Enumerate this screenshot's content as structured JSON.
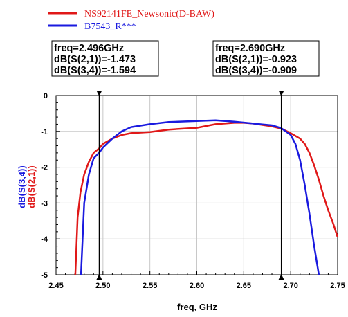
{
  "chart_data": {
    "type": "line",
    "xlabel": "freq, GHz",
    "ylabel_parts": [
      {
        "text": "dB(S(3,4))",
        "color": "#1a1adf"
      },
      {
        "text": "dB(S(2,1))",
        "color": "#e01818"
      }
    ],
    "xlim": [
      2.45,
      2.75
    ],
    "ylim": [
      -5,
      0
    ],
    "xticks": [
      "2.45",
      "2.50",
      "2.55",
      "2.60",
      "2.65",
      "2.70",
      "2.75"
    ],
    "yticks": [
      "0",
      "-1",
      "-2",
      "-3",
      "-4",
      "-5"
    ],
    "grid": true,
    "legend_position": "top-left",
    "series": [
      {
        "name": "NS92141FE_Newsonic(D-BAW)",
        "color": "#e01818",
        "x": [
          2.4706,
          2.473,
          2.476,
          2.48,
          2.485,
          2.49,
          2.496,
          2.5,
          2.51,
          2.52,
          2.53,
          2.55,
          2.57,
          2.6,
          2.62,
          2.64,
          2.65,
          2.66,
          2.67,
          2.68,
          2.69,
          2.7,
          2.71,
          2.715,
          2.72,
          2.725,
          2.73,
          2.735,
          2.74,
          2.745,
          2.75
        ],
        "y": [
          -5.0,
          -3.4,
          -2.7,
          -2.2,
          -1.85,
          -1.6,
          -1.473,
          -1.35,
          -1.2,
          -1.1,
          -1.05,
          -1.02,
          -0.95,
          -0.9,
          -0.8,
          -0.76,
          -0.76,
          -0.78,
          -0.82,
          -0.86,
          -0.923,
          -1.05,
          -1.2,
          -1.35,
          -1.6,
          -1.95,
          -2.35,
          -2.8,
          -3.2,
          -3.55,
          -3.95
        ]
      },
      {
        "name": "B7543_R***",
        "color": "#1a1adf",
        "x": [
          2.4766,
          2.48,
          2.485,
          2.49,
          2.496,
          2.5,
          2.51,
          2.52,
          2.53,
          2.55,
          2.57,
          2.6,
          2.62,
          2.64,
          2.66,
          2.68,
          2.69,
          2.7,
          2.705,
          2.71,
          2.715,
          2.72,
          2.725,
          2.73
        ],
        "y": [
          -5.0,
          -3.0,
          -2.2,
          -1.75,
          -1.594,
          -1.45,
          -1.2,
          -1.0,
          -0.88,
          -0.8,
          -0.74,
          -0.71,
          -0.69,
          -0.73,
          -0.78,
          -0.83,
          -0.909,
          -1.1,
          -1.35,
          -1.8,
          -2.5,
          -3.3,
          -4.2,
          -5.0
        ]
      }
    ],
    "markers": [
      {
        "freq": 2.496,
        "lines": [
          "freq=2.496GHz",
          "dB(S(2,1))=-1.473",
          "dB(S(3,4))=-1.594"
        ]
      },
      {
        "freq": 2.69,
        "lines": [
          "freq=2.690GHz",
          "dB(S(2,1))=-0.923",
          "dB(S(3,4))=-0.909"
        ]
      }
    ]
  }
}
